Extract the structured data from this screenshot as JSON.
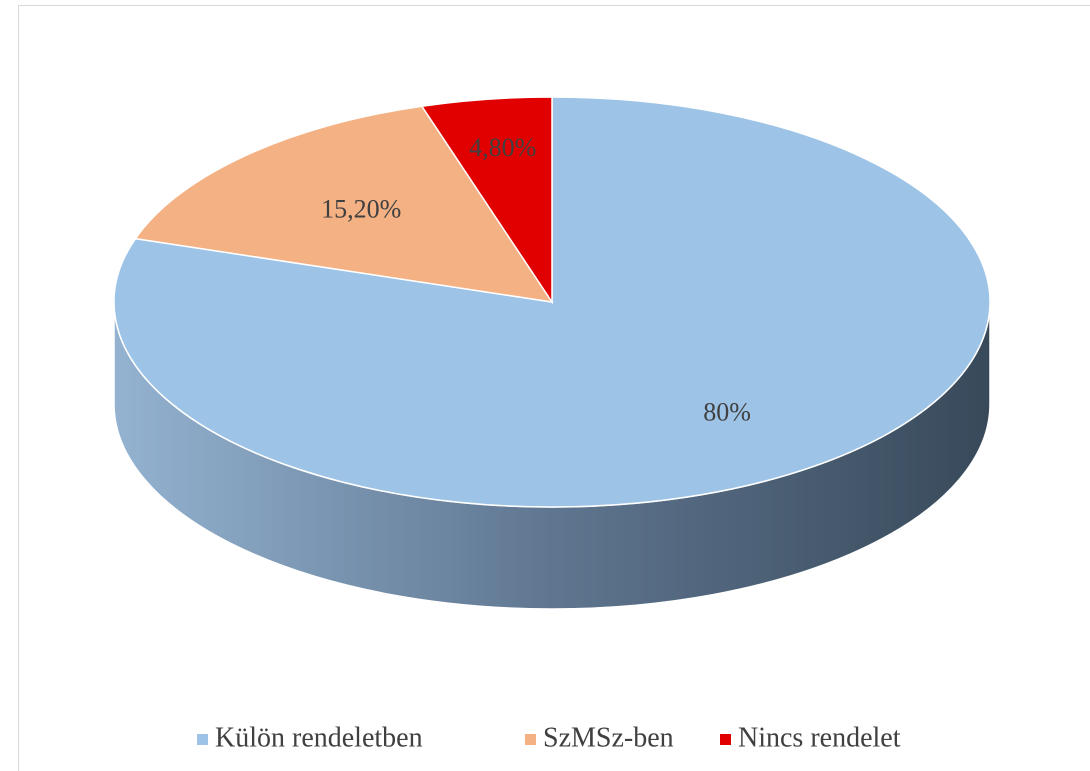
{
  "chart_data": {
    "type": "pie3d",
    "categories": [
      "Külön rendeletben",
      "SzMSz-ben",
      "Nincs rendelet"
    ],
    "values": [
      80,
      15.2,
      4.8
    ],
    "value_labels": [
      "80%",
      "15,20%",
      "4,80%"
    ],
    "colors": [
      "#9dc3e6",
      "#f4b183",
      "#e00000"
    ],
    "legend": "bottom"
  }
}
